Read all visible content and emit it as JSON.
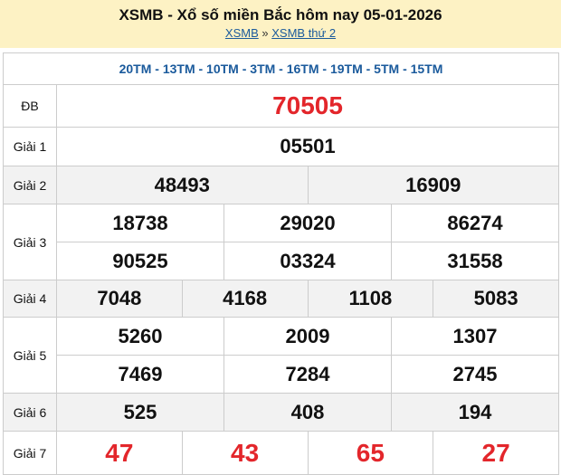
{
  "header": {
    "title": "XSMB - Xổ số miền Bắc hôm nay 05-01-2026",
    "crumbs": [
      "XSMB",
      "XSMB thứ 2"
    ],
    "sep": "»"
  },
  "codes": "20TM - 13TM - 10TM - 3TM - 16TM - 19TM - 5TM - 15TM",
  "prizes": {
    "db": {
      "label": "ĐB",
      "values": [
        "70505"
      ]
    },
    "g1": {
      "label": "Giải 1",
      "values": [
        "05501"
      ]
    },
    "g2": {
      "label": "Giải 2",
      "values": [
        "48493",
        "16909"
      ]
    },
    "g3": {
      "label": "Giải 3",
      "values": [
        "18738",
        "29020",
        "86274",
        "90525",
        "03324",
        "31558"
      ]
    },
    "g4": {
      "label": "Giải 4",
      "values": [
        "7048",
        "4168",
        "1108",
        "5083"
      ]
    },
    "g5": {
      "label": "Giải 5",
      "values": [
        "5260",
        "2009",
        "1307",
        "7469",
        "7284",
        "2745"
      ]
    },
    "g6": {
      "label": "Giải 6",
      "values": [
        "525",
        "408",
        "194"
      ]
    },
    "g7": {
      "label": "Giải 7",
      "values": [
        "47",
        "43",
        "65",
        "27"
      ]
    }
  },
  "colors": {
    "accent_red": "#e3262b",
    "link_blue": "#1a5a9c",
    "header_bg": "#fdf2c4"
  }
}
